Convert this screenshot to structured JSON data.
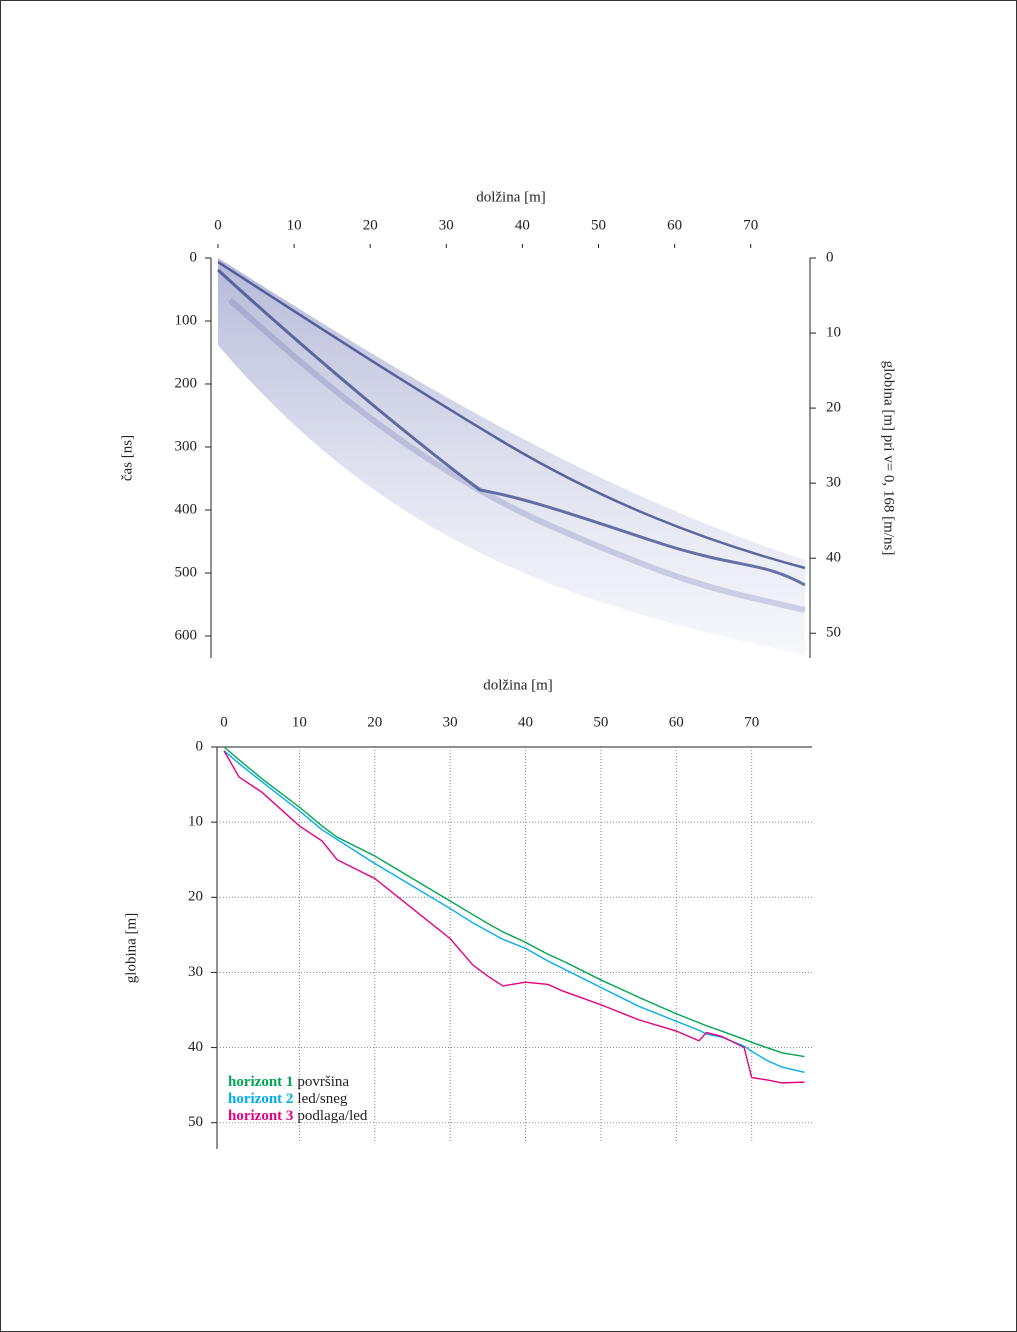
{
  "chart_data": [
    {
      "type": "radargram",
      "xlabel": "dolžina [m]",
      "ylabel": "čas [ns]",
      "y2label": "globina [m] pri v= 0, 168 [m/ns]",
      "xlim": [
        0,
        77
      ],
      "xticks": [
        0,
        10,
        20,
        30,
        40,
        50,
        60,
        70
      ],
      "ylim": [
        0,
        635
      ],
      "yticks": [
        0,
        100,
        200,
        300,
        400,
        500,
        600
      ],
      "y2lim": [
        0,
        53.3
      ],
      "y2ticks": [
        0,
        10,
        20,
        30,
        40,
        50
      ]
    },
    {
      "type": "line",
      "xlabel": "dolžina [m]",
      "ylabel": "globina  [m]",
      "xlim": [
        0,
        78
      ],
      "xticks": [
        0,
        10,
        20,
        30,
        40,
        50,
        60,
        70
      ],
      "ylim": [
        0,
        53.5
      ],
      "yticks": [
        0,
        10,
        20,
        30,
        40,
        50
      ],
      "grid": true,
      "legend": "lower left",
      "x": [
        0,
        2,
        5,
        10,
        13,
        15,
        20,
        25,
        30,
        33,
        35,
        37,
        40,
        43,
        45,
        50,
        55,
        60,
        63,
        64,
        66,
        69,
        70,
        72,
        74,
        77
      ],
      "series": [
        {
          "name": "horizont 1",
          "description": "površina",
          "color": "#00a651",
          "values": [
            0,
            1.7,
            4.2,
            8,
            10.5,
            12,
            14.5,
            17.5,
            20.5,
            22.3,
            23.5,
            24.6,
            26,
            27.6,
            28.5,
            31,
            33.3,
            35.5,
            36.7,
            37.1,
            37.8,
            38.9,
            39.3,
            40,
            40.7,
            41.2
          ]
        },
        {
          "name": "horizont 2",
          "description": "led/sneg",
          "color": "#00aeef",
          "values": [
            0.5,
            2.2,
            4.6,
            8.5,
            11,
            12.3,
            15.5,
            18.5,
            21.5,
            23.4,
            24.5,
            25.6,
            26.8,
            28.5,
            29.5,
            32,
            34.5,
            36.5,
            37.7,
            38.2,
            38.6,
            39.8,
            40.5,
            41.7,
            42.6,
            43.3
          ]
        },
        {
          "name": "horizont 3",
          "description": "podlaga/led",
          "color": "#e6007e",
          "values": [
            0.5,
            4,
            6,
            10.5,
            12.5,
            15,
            17.5,
            21.5,
            25.5,
            29,
            30.5,
            31.8,
            31.3,
            31.6,
            32.5,
            34.3,
            36.3,
            37.8,
            39.1,
            38,
            38.5,
            40,
            44,
            44.3,
            44.7,
            44.6
          ]
        }
      ]
    }
  ]
}
